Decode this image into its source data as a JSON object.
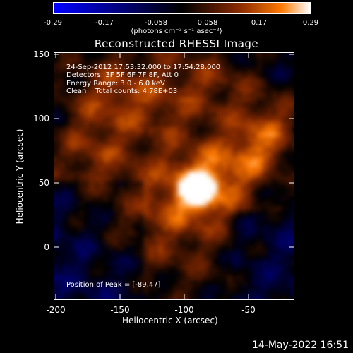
{
  "colorbar": {
    "ticks": [
      "-0.29",
      "-0.17",
      "-0.058",
      "0.058",
      "0.17",
      "0.29"
    ],
    "unit_label": "(photons cm⁻² s⁻¹ asec⁻²)"
  },
  "title": "Reconstructed RHESSI Image",
  "info_lines": [
    "24-Sep-2012 17:53:32.000 to 17:54:28.000",
    "Detectors: 3F 5F 6F 7F 8F, Att 0",
    "Energy Range: 3.0 - 6.0 keV",
    "Clean    Total counts: 4.78E+03"
  ],
  "peak_label": "Position of Peak = [-89,47]",
  "axes": {
    "xlabel": "Heliocentric X (arcsec)",
    "ylabel": "Heliocentric Y (arcsec)",
    "xticks": [
      "-200",
      "-150",
      "-100",
      "-50"
    ],
    "yticks": [
      "150",
      "100",
      "50",
      "0"
    ]
  },
  "footer_date": "14-May-2022 16:51",
  "colormap": [
    "#0000ff",
    "#000000",
    "#8a2b00",
    "#ff7a00",
    "#ffffff"
  ]
}
